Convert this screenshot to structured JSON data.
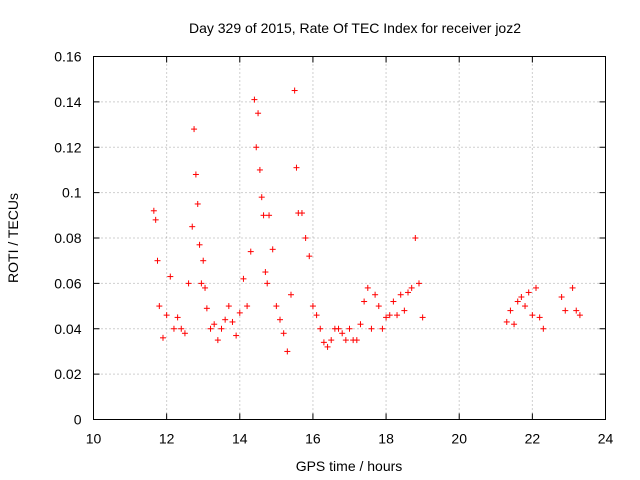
{
  "chart_data": {
    "type": "scatter",
    "title": "Day 329 of 2015, Rate Of TEC Index for receiver joz2",
    "xlabel": "GPS time / hours",
    "ylabel": "ROTI / TECUs",
    "xlim": [
      10,
      24
    ],
    "ylim": [
      0,
      0.16
    ],
    "x_ticks": [
      "10",
      "12",
      "14",
      "16",
      "18",
      "20",
      "22",
      "24"
    ],
    "y_ticks": [
      "0",
      "0.02",
      "0.04",
      "0.06",
      "0.08",
      "0.1",
      "0.12",
      "0.14",
      "0.16"
    ],
    "grid": true,
    "marker": "+",
    "color": "#ff0000",
    "series": [
      {
        "name": "ROTI",
        "x": [
          11.65,
          11.7,
          11.75,
          11.8,
          11.9,
          12.0,
          12.1,
          12.2,
          12.3,
          12.4,
          12.5,
          12.6,
          12.7,
          12.75,
          12.8,
          12.85,
          12.9,
          12.95,
          13.0,
          13.05,
          13.1,
          13.2,
          13.3,
          13.4,
          13.5,
          13.6,
          13.7,
          13.8,
          13.9,
          14.0,
          14.1,
          14.2,
          14.3,
          14.4,
          14.45,
          14.5,
          14.55,
          14.6,
          14.65,
          14.7,
          14.75,
          14.8,
          14.9,
          15.0,
          15.1,
          15.2,
          15.3,
          15.4,
          15.5,
          15.55,
          15.6,
          15.7,
          15.8,
          15.9,
          16.0,
          16.1,
          16.2,
          16.3,
          16.4,
          16.5,
          16.6,
          16.7,
          16.8,
          16.9,
          17.0,
          17.1,
          17.2,
          17.3,
          17.4,
          17.5,
          17.6,
          17.7,
          17.8,
          17.9,
          18.0,
          18.1,
          18.2,
          18.3,
          18.4,
          18.5,
          18.6,
          18.7,
          18.8,
          18.9,
          19.0,
          21.3,
          21.4,
          21.5,
          21.6,
          21.7,
          21.8,
          21.9,
          22.0,
          22.1,
          22.2,
          22.3,
          22.8,
          22.9,
          23.1,
          23.2,
          23.3
        ],
        "y": [
          0.092,
          0.088,
          0.07,
          0.05,
          0.036,
          0.046,
          0.063,
          0.04,
          0.045,
          0.04,
          0.038,
          0.06,
          0.085,
          0.128,
          0.108,
          0.095,
          0.077,
          0.06,
          0.07,
          0.058,
          0.049,
          0.04,
          0.042,
          0.035,
          0.04,
          0.044,
          0.05,
          0.043,
          0.037,
          0.047,
          0.062,
          0.05,
          0.074,
          0.141,
          0.12,
          0.135,
          0.11,
          0.098,
          0.09,
          0.065,
          0.06,
          0.09,
          0.075,
          0.05,
          0.044,
          0.038,
          0.03,
          0.055,
          0.145,
          0.111,
          0.091,
          0.091,
          0.08,
          0.072,
          0.05,
          0.046,
          0.04,
          0.034,
          0.032,
          0.035,
          0.04,
          0.04,
          0.038,
          0.035,
          0.04,
          0.035,
          0.035,
          0.042,
          0.052,
          0.058,
          0.04,
          0.055,
          0.05,
          0.04,
          0.045,
          0.046,
          0.052,
          0.046,
          0.055,
          0.048,
          0.056,
          0.058,
          0.08,
          0.06,
          0.045,
          0.043,
          0.048,
          0.042,
          0.052,
          0.054,
          0.05,
          0.056,
          0.046,
          0.058,
          0.045,
          0.04,
          0.054,
          0.048,
          0.058,
          0.048,
          0.046
        ]
      }
    ]
  }
}
